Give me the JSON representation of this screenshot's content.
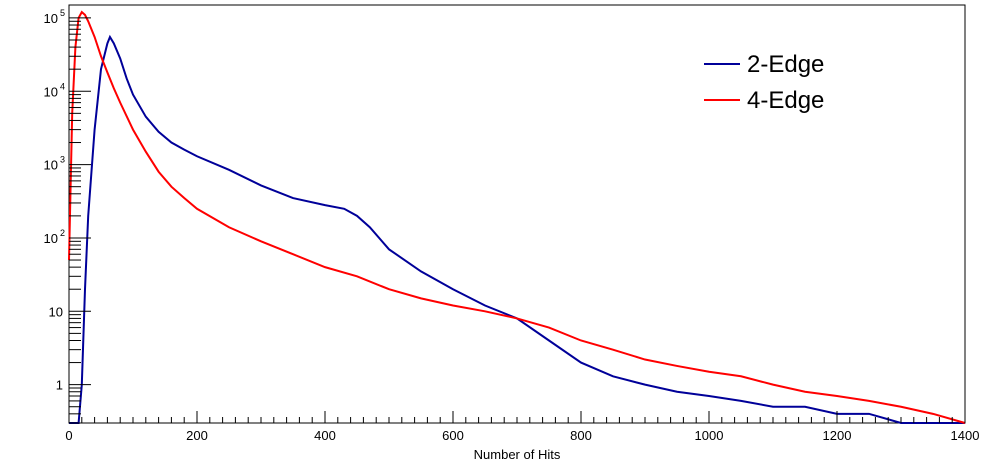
{
  "chart_data": {
    "type": "line",
    "title": "",
    "xlabel": "Number of Hits",
    "ylabel": "",
    "xlim": [
      0,
      1400
    ],
    "ylim": [
      0.3,
      150000
    ],
    "yscale": "log",
    "grid": false,
    "legend_position": "top-right",
    "x_tick_labels": [
      "0",
      "200",
      "400",
      "600",
      "800",
      "1000",
      "1200",
      "1400"
    ],
    "x_ticks": [
      0,
      200,
      400,
      600,
      800,
      1000,
      1200,
      1400
    ],
    "y_ticks": [
      1,
      10,
      100,
      1000,
      10000,
      100000
    ],
    "y_tick_labels": [
      {
        "base": "1",
        "exp": ""
      },
      {
        "base": "10",
        "exp": ""
      },
      {
        "base": "10",
        "exp": "2"
      },
      {
        "base": "10",
        "exp": "3"
      },
      {
        "base": "10",
        "exp": "4"
      },
      {
        "base": "10",
        "exp": "5"
      }
    ],
    "series": [
      {
        "name": "2-Edge",
        "color": "#000099",
        "x": [
          0,
          15,
          20,
          25,
          30,
          40,
          50,
          60,
          64,
          70,
          80,
          90,
          100,
          120,
          140,
          160,
          180,
          200,
          250,
          300,
          350,
          400,
          430,
          450,
          470,
          500,
          550,
          600,
          650,
          700,
          750,
          800,
          850,
          900,
          950,
          1000,
          1050,
          1100,
          1150,
          1200,
          1250,
          1300,
          1350,
          1400
        ],
        "y": [
          0,
          0.3,
          1,
          20,
          200,
          3000,
          20000,
          45000,
          55000,
          45000,
          28000,
          15000,
          9000,
          4500,
          2800,
          2000,
          1600,
          1300,
          850,
          520,
          350,
          280,
          250,
          200,
          140,
          70,
          35,
          20,
          12,
          8,
          4,
          2,
          1.3,
          1,
          0.8,
          0.7,
          0.6,
          0.5,
          0.5,
          0.4,
          0.4,
          0.3,
          0.3,
          0.3
        ]
      },
      {
        "name": "4-Edge",
        "color": "#ff0000",
        "x": [
          0,
          5,
          10,
          15,
          20,
          25,
          30,
          40,
          50,
          60,
          70,
          80,
          100,
          120,
          140,
          160,
          180,
          200,
          250,
          300,
          350,
          400,
          450,
          500,
          550,
          600,
          650,
          700,
          750,
          800,
          850,
          900,
          950,
          1000,
          1050,
          1100,
          1150,
          1200,
          1250,
          1300,
          1350,
          1400
        ],
        "y": [
          50,
          5000,
          40000,
          100000,
          120000,
          110000,
          90000,
          55000,
          30000,
          18000,
          11000,
          7000,
          3000,
          1500,
          800,
          500,
          350,
          250,
          140,
          90,
          60,
          40,
          30,
          20,
          15,
          12,
          10,
          8,
          6,
          4,
          3,
          2.2,
          1.8,
          1.5,
          1.3,
          1,
          0.8,
          0.7,
          0.6,
          0.5,
          0.4,
          0.3
        ]
      }
    ]
  }
}
